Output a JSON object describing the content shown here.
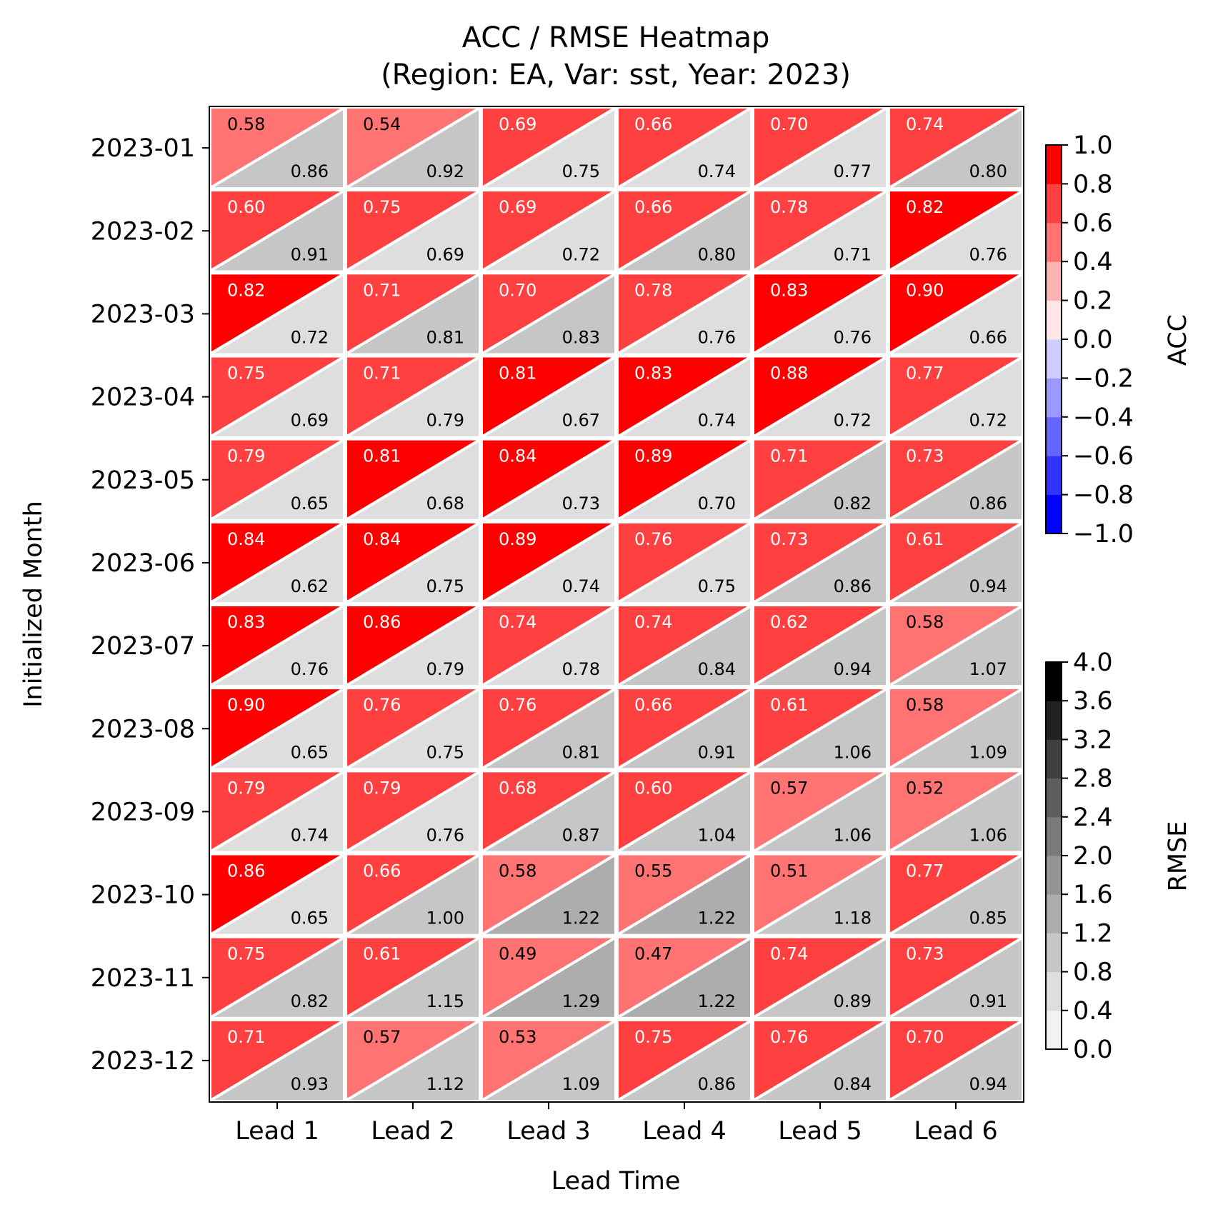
{
  "chart_data": {
    "type": "heatmap",
    "title": "ACC / RMSE Heatmap",
    "subtitle": "(Region: EA, Var: sst, Year: 2023)",
    "xlabel": "Lead Time",
    "ylabel": "Initialized Month",
    "x_categories": [
      "Lead 1",
      "Lead 2",
      "Lead 3",
      "Lead 4",
      "Lead 5",
      "Lead 6"
    ],
    "y_categories": [
      "2023-01",
      "2023-02",
      "2023-03",
      "2023-04",
      "2023-05",
      "2023-06",
      "2023-07",
      "2023-08",
      "2023-09",
      "2023-10",
      "2023-11",
      "2023-12"
    ],
    "acc": [
      [
        0.58,
        0.54,
        0.69,
        0.66,
        0.7,
        0.74
      ],
      [
        0.6,
        0.75,
        0.69,
        0.66,
        0.78,
        0.82
      ],
      [
        0.82,
        0.71,
        0.7,
        0.78,
        0.83,
        0.9
      ],
      [
        0.75,
        0.71,
        0.81,
        0.83,
        0.88,
        0.77
      ],
      [
        0.79,
        0.81,
        0.84,
        0.89,
        0.71,
        0.73
      ],
      [
        0.84,
        0.84,
        0.89,
        0.76,
        0.73,
        0.61
      ],
      [
        0.83,
        0.86,
        0.74,
        0.74,
        0.62,
        0.58
      ],
      [
        0.9,
        0.76,
        0.76,
        0.66,
        0.61,
        0.58
      ],
      [
        0.79,
        0.79,
        0.68,
        0.6,
        0.57,
        0.52
      ],
      [
        0.86,
        0.66,
        0.58,
        0.55,
        0.51,
        0.77
      ],
      [
        0.75,
        0.61,
        0.49,
        0.47,
        0.74,
        0.73
      ],
      [
        0.71,
        0.57,
        0.53,
        0.75,
        0.76,
        0.7
      ]
    ],
    "rmse": [
      [
        0.86,
        0.92,
        0.75,
        0.74,
        0.77,
        0.8
      ],
      [
        0.91,
        0.69,
        0.72,
        0.8,
        0.71,
        0.76
      ],
      [
        0.72,
        0.81,
        0.83,
        0.76,
        0.76,
        0.66
      ],
      [
        0.69,
        0.79,
        0.67,
        0.74,
        0.72,
        0.72
      ],
      [
        0.65,
        0.68,
        0.73,
        0.7,
        0.82,
        0.86
      ],
      [
        0.62,
        0.75,
        0.74,
        0.75,
        0.86,
        0.94
      ],
      [
        0.76,
        0.79,
        0.78,
        0.84,
        0.94,
        1.07
      ],
      [
        0.65,
        0.75,
        0.81,
        0.91,
        1.06,
        1.09
      ],
      [
        0.74,
        0.76,
        0.87,
        1.04,
        1.06,
        1.06
      ],
      [
        0.65,
        1.0,
        1.22,
        1.22,
        1.18,
        0.85
      ],
      [
        0.82,
        1.15,
        1.29,
        1.22,
        0.89,
        0.91
      ],
      [
        0.93,
        1.12,
        1.09,
        0.86,
        0.84,
        0.94
      ]
    ],
    "acc_colorbar": {
      "label": "ACC",
      "range": [
        -1.0,
        1.0
      ],
      "ticks": [
        "1.0",
        "0.8",
        "0.6",
        "0.4",
        "0.2",
        "0.0",
        "−0.2",
        "−0.4",
        "−0.6",
        "−0.8",
        "−1.0"
      ],
      "colors": [
        "#0000ff",
        "#3333ff",
        "#6666ff",
        "#9999ff",
        "#ccccff",
        "#ffe6e6",
        "#ffb3b3",
        "#ff7373",
        "#ff4040",
        "#ff0000"
      ]
    },
    "rmse_colorbar": {
      "label": "RMSE",
      "range": [
        0.0,
        4.0
      ],
      "ticks": [
        "4.0",
        "3.6",
        "3.2",
        "2.8",
        "2.4",
        "2.0",
        "1.6",
        "1.2",
        "0.8",
        "0.4",
        "0.0"
      ],
      "colors": [
        "#ffffff",
        "#f2f2f2",
        "#dedede",
        "#c6c6c6",
        "#adadad",
        "#949494",
        "#7a7a7a",
        "#5e5e5e",
        "#404040",
        "#212121",
        "#000000"
      ]
    }
  }
}
